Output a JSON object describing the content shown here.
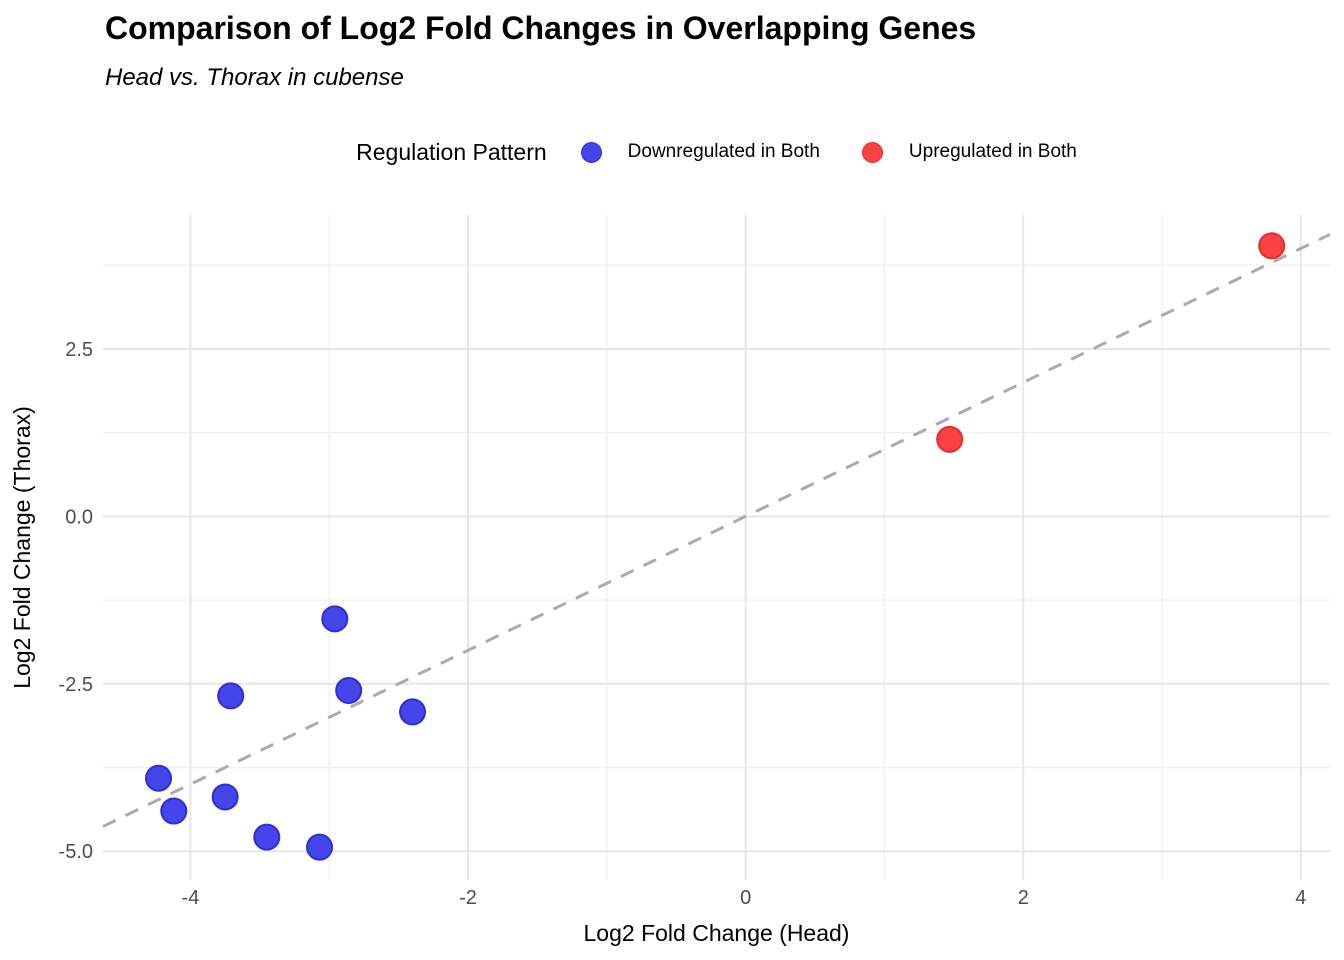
{
  "header": {
    "title": "Comparison of Log2 Fold Changes in Overlapping Genes",
    "subtitle": "Head vs. Thorax in cubense"
  },
  "legend": {
    "title": "Regulation Pattern",
    "items": [
      {
        "label": "Downregulated in Both",
        "color": "#4545ec",
        "edge": "#2e2ed4"
      },
      {
        "label": "Upregulated in Both",
        "color": "#fa4242",
        "edge": "#e12f2f"
      }
    ]
  },
  "chart_data": {
    "type": "scatter",
    "title": "Comparison of Log2 Fold Changes in Overlapping Genes",
    "subtitle": "Head vs. Thorax in cubense",
    "xlabel": "Log2 Fold Change (Head)",
    "ylabel": "Log2 Fold Change (Thorax)",
    "xlim": [
      -4.63,
      4.21
    ],
    "ylim": [
      -5.43,
      4.5
    ],
    "x_ticks": [
      {
        "v": -4,
        "label": "-4"
      },
      {
        "v": -2,
        "label": "-2"
      },
      {
        "v": 0,
        "label": "0"
      },
      {
        "v": 2,
        "label": "2"
      },
      {
        "v": 4,
        "label": "4"
      }
    ],
    "y_ticks": [
      {
        "v": 2.5,
        "label": "2.5"
      },
      {
        "v": 0,
        "label": "0.0"
      },
      {
        "v": -2.5,
        "label": "-2.5"
      },
      {
        "v": -5,
        "label": "-5.0"
      }
    ],
    "x_minor_ticks": [
      -3,
      -1,
      1,
      3
    ],
    "y_minor_ticks": [
      3.75,
      1.25,
      -1.25,
      -3.75
    ],
    "grid": "major+minor",
    "legend_position": "top",
    "reference_line": {
      "type": "identity y=x",
      "from": [
        -4.63,
        -4.63
      ],
      "to": [
        4.21,
        4.21
      ],
      "style": "dashed",
      "color": "#ababab"
    },
    "series": [
      {
        "name": "Downregulated in Both",
        "color": "#4545ec",
        "edge": "#2e2ed4",
        "points": [
          [
            -2.96,
            -1.53
          ],
          [
            -3.71,
            -2.68
          ],
          [
            -2.86,
            -2.6
          ],
          [
            -2.4,
            -2.92
          ],
          [
            -4.23,
            -3.91
          ],
          [
            -3.75,
            -4.19
          ],
          [
            -4.12,
            -4.4
          ],
          [
            -3.45,
            -4.79
          ],
          [
            -3.07,
            -4.94
          ]
        ]
      },
      {
        "name": "Upregulated in Both",
        "color": "#fa4242",
        "edge": "#e12f2f",
        "points": [
          [
            1.47,
            1.15
          ],
          [
            3.79,
            4.04
          ]
        ]
      }
    ]
  },
  "colors": {
    "background": "#ffffff",
    "grid_major": "#e6e6e6",
    "grid_minor": "#f0f0f0",
    "tick_text": "#4d4d4d",
    "title_text": "#000000",
    "dashed_line": "#ababab"
  }
}
